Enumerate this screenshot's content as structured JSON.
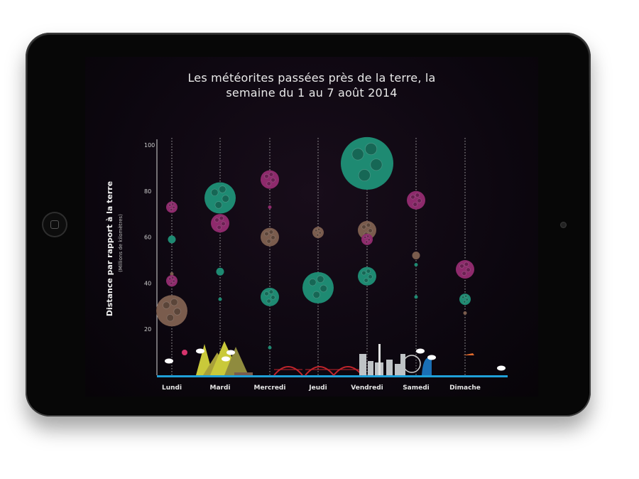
{
  "chart_data": {
    "type": "scatter",
    "title_lines": [
      "Les météorites passées près de la terre, la",
      "semaine du 1 au 7 août 2014"
    ],
    "ylabel": "Distance par rapport à la terre",
    "ylabel_sub": "(Millions de kilomètres)",
    "yticks": [
      20,
      40,
      60,
      80,
      100
    ],
    "ylim": [
      0,
      100
    ],
    "categories": [
      "Lundi",
      "Mardi",
      "Mercredi",
      "Jeudi",
      "Vendredi",
      "Samedi",
      "Dimache"
    ],
    "colors": {
      "green": "#1e8a72",
      "purple": "#8e2a6c",
      "brown": "#7a5c4d",
      "axis": "#1fa0d8"
    },
    "points": [
      {
        "day": 0,
        "y": 73,
        "size": "s",
        "color": "purple"
      },
      {
        "day": 0,
        "y": 59,
        "size": "xs",
        "color": "green"
      },
      {
        "day": 0,
        "y": 44,
        "size": "xxs",
        "color": "brown"
      },
      {
        "day": 0,
        "y": 41,
        "size": "s",
        "color": "purple"
      },
      {
        "day": 0,
        "y": 33,
        "size": "xxs",
        "color": "green"
      },
      {
        "day": 0,
        "y": 28,
        "size": "l",
        "color": "brown"
      },
      {
        "day": 1,
        "y": 77,
        "size": "l",
        "color": "green"
      },
      {
        "day": 1,
        "y": 66,
        "size": "m",
        "color": "purple"
      },
      {
        "day": 1,
        "y": 45,
        "size": "xs",
        "color": "green"
      },
      {
        "day": 1,
        "y": 33,
        "size": "xxs",
        "color": "green"
      },
      {
        "day": 2,
        "y": 85,
        "size": "m",
        "color": "purple"
      },
      {
        "day": 2,
        "y": 73,
        "size": "xxs",
        "color": "purple"
      },
      {
        "day": 2,
        "y": 60,
        "size": "m",
        "color": "brown"
      },
      {
        "day": 2,
        "y": 34,
        "size": "m",
        "color": "green"
      },
      {
        "day": 2,
        "y": 12,
        "size": "xxs",
        "color": "green"
      },
      {
        "day": 3,
        "y": 62,
        "size": "s",
        "color": "brown"
      },
      {
        "day": 3,
        "y": 38,
        "size": "l",
        "color": "green"
      },
      {
        "day": 4,
        "y": 92,
        "size": "xl",
        "color": "green"
      },
      {
        "day": 4,
        "y": 63,
        "size": "m",
        "color": "brown"
      },
      {
        "day": 4,
        "y": 59,
        "size": "s",
        "color": "purple"
      },
      {
        "day": 4,
        "y": 43,
        "size": "m",
        "color": "green"
      },
      {
        "day": 5,
        "y": 76,
        "size": "m",
        "color": "purple"
      },
      {
        "day": 5,
        "y": 52,
        "size": "xs",
        "color": "brown"
      },
      {
        "day": 5,
        "y": 48,
        "size": "xxs",
        "color": "green"
      },
      {
        "day": 5,
        "y": 34,
        "size": "xxs",
        "color": "green"
      },
      {
        "day": 6,
        "y": 46,
        "size": "m",
        "color": "purple"
      },
      {
        "day": 6,
        "y": 33,
        "size": "s",
        "color": "green"
      },
      {
        "day": 6,
        "y": 27,
        "size": "xxs",
        "color": "brown"
      }
    ]
  }
}
